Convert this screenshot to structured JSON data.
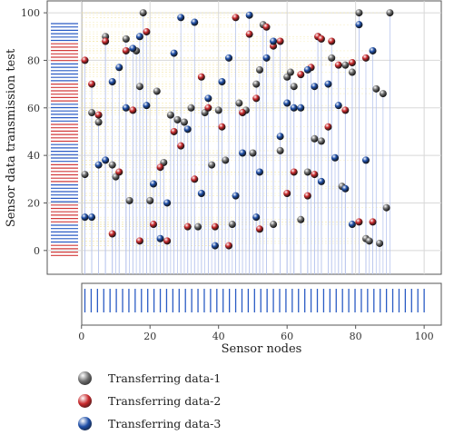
{
  "chart_data": {
    "type": "scatter",
    "xlabel": "Sensor nodes",
    "ylabel": "Sensor data transmission test",
    "xlim": [
      -10,
      105
    ],
    "ylim": [
      -10,
      105
    ],
    "x_ticks": [
      0,
      20,
      40,
      60,
      80,
      100
    ],
    "y_ticks": [
      0,
      20,
      40,
      60,
      80,
      100
    ],
    "grid": true,
    "legend_position": "bottom-left",
    "series": [
      {
        "name": "Transferring data-1",
        "color": "#6f6f6f",
        "points": [
          [
            1,
            32
          ],
          [
            3,
            58
          ],
          [
            5,
            54
          ],
          [
            7,
            90
          ],
          [
            9,
            36
          ],
          [
            10,
            31
          ],
          [
            13,
            89
          ],
          [
            14,
            21
          ],
          [
            16,
            84
          ],
          [
            17,
            69
          ],
          [
            18,
            100
          ],
          [
            20,
            21
          ],
          [
            22,
            67
          ],
          [
            24,
            37
          ],
          [
            26,
            57
          ],
          [
            28,
            55
          ],
          [
            30,
            54
          ],
          [
            32,
            60
          ],
          [
            34,
            10
          ],
          [
            36,
            58
          ],
          [
            38,
            36
          ],
          [
            40,
            59
          ],
          [
            42,
            38
          ],
          [
            44,
            11
          ],
          [
            46,
            62
          ],
          [
            48,
            59
          ],
          [
            50,
            41
          ],
          [
            51,
            70
          ],
          [
            52,
            76
          ],
          [
            53,
            95
          ],
          [
            56,
            11
          ],
          [
            58,
            42
          ],
          [
            60,
            73
          ],
          [
            61,
            75
          ],
          [
            62,
            69
          ],
          [
            64,
            13
          ],
          [
            66,
            33
          ],
          [
            68,
            47
          ],
          [
            69,
            90
          ],
          [
            70,
            46
          ],
          [
            73,
            81
          ],
          [
            76,
            27
          ],
          [
            77,
            78
          ],
          [
            79,
            75
          ],
          [
            81,
            100
          ],
          [
            83,
            5
          ],
          [
            84,
            4
          ],
          [
            86,
            68
          ],
          [
            87,
            3
          ],
          [
            88,
            66
          ],
          [
            89,
            18
          ],
          [
            90,
            100
          ]
        ]
      },
      {
        "name": "Transferring data-2",
        "color": "#c8292c",
        "points": [
          [
            1,
            80
          ],
          [
            3,
            70
          ],
          [
            5,
            57
          ],
          [
            7,
            88
          ],
          [
            9,
            7
          ],
          [
            11,
            33
          ],
          [
            13,
            84
          ],
          [
            15,
            59
          ],
          [
            17,
            4
          ],
          [
            19,
            92
          ],
          [
            21,
            11
          ],
          [
            23,
            35
          ],
          [
            25,
            4
          ],
          [
            27,
            50
          ],
          [
            29,
            44
          ],
          [
            31,
            10
          ],
          [
            33,
            30
          ],
          [
            35,
            73
          ],
          [
            37,
            60
          ],
          [
            39,
            10
          ],
          [
            41,
            52
          ],
          [
            43,
            2
          ],
          [
            45,
            98
          ],
          [
            47,
            58
          ],
          [
            49,
            91
          ],
          [
            51,
            64
          ],
          [
            52,
            9
          ],
          [
            54,
            94
          ],
          [
            56,
            86
          ],
          [
            58,
            88
          ],
          [
            60,
            24
          ],
          [
            62,
            33
          ],
          [
            64,
            74
          ],
          [
            66,
            23
          ],
          [
            67,
            77
          ],
          [
            68,
            32
          ],
          [
            69,
            90
          ],
          [
            70,
            89
          ],
          [
            72,
            52
          ],
          [
            73,
            88
          ],
          [
            75,
            78
          ],
          [
            77,
            59
          ],
          [
            79,
            79
          ],
          [
            81,
            12
          ],
          [
            83,
            81
          ],
          [
            85,
            12
          ]
        ]
      },
      {
        "name": "Transferring data-3",
        "color": "#1f4fa8",
        "points": [
          [
            1,
            14
          ],
          [
            3,
            14
          ],
          [
            5,
            36
          ],
          [
            7,
            38
          ],
          [
            9,
            71
          ],
          [
            11,
            77
          ],
          [
            13,
            60
          ],
          [
            15,
            85
          ],
          [
            17,
            90
          ],
          [
            19,
            61
          ],
          [
            21,
            28
          ],
          [
            23,
            5
          ],
          [
            25,
            20
          ],
          [
            27,
            83
          ],
          [
            29,
            98
          ],
          [
            31,
            51
          ],
          [
            33,
            96
          ],
          [
            35,
            24
          ],
          [
            37,
            64
          ],
          [
            39,
            2
          ],
          [
            41,
            71
          ],
          [
            43,
            81
          ],
          [
            45,
            23
          ],
          [
            47,
            41
          ],
          [
            49,
            99
          ],
          [
            51,
            14
          ],
          [
            52,
            33
          ],
          [
            54,
            81
          ],
          [
            56,
            88
          ],
          [
            58,
            48
          ],
          [
            60,
            62
          ],
          [
            62,
            60
          ],
          [
            64,
            60
          ],
          [
            66,
            76
          ],
          [
            68,
            69
          ],
          [
            70,
            29
          ],
          [
            72,
            70
          ],
          [
            74,
            39
          ],
          [
            75,
            61
          ],
          [
            77,
            26
          ],
          [
            79,
            11
          ],
          [
            81,
            95
          ],
          [
            83,
            38
          ],
          [
            85,
            84
          ]
        ]
      }
    ]
  }
}
